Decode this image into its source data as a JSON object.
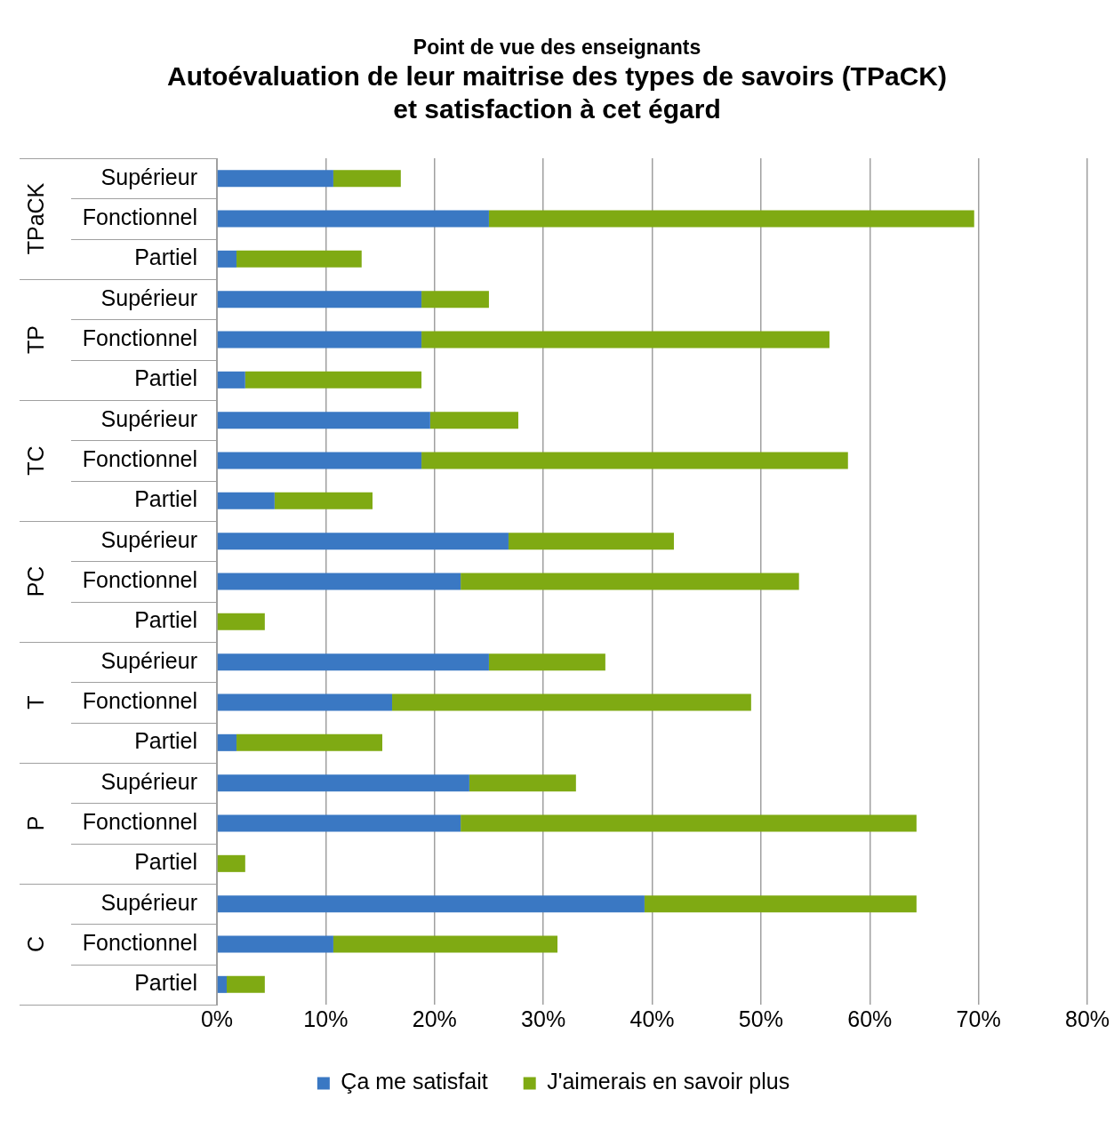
{
  "chart_data": {
    "type": "bar",
    "orientation": "horizontal",
    "stacked": true,
    "subtitle": "Point de vue des enseignants",
    "title": "Autoévaluation de leur maitrise des types de savoirs (TPaCK)\net satisfaction à cet égard",
    "categories": [
      "Supérieur",
      "Fonctionnel",
      "Partiel",
      "Supérieur",
      "Fonctionnel",
      "Partiel",
      "Supérieur",
      "Fonctionnel",
      "Partiel",
      "Supérieur",
      "Fonctionnel",
      "Partiel",
      "Supérieur",
      "Fonctionnel",
      "Partiel",
      "Supérieur",
      "Fonctionnel",
      "Partiel",
      "Supérieur",
      "Fonctionnel",
      "Partiel"
    ],
    "annotations": [
      "TPaCK",
      "TP",
      "TC",
      "PC",
      "T",
      "P",
      "C"
    ],
    "series": [
      {
        "name": "Ça me satisfait",
        "color": "#3a78c3",
        "values": [
          10.7,
          25.0,
          1.8,
          18.8,
          18.8,
          2.6,
          19.6,
          18.8,
          5.3,
          26.8,
          22.4,
          0,
          25.0,
          16.1,
          1.8,
          23.2,
          22.4,
          0,
          39.3,
          10.7,
          0.9
        ]
      },
      {
        "name": "J'aimerais en savoir plus",
        "color": "#7faa13",
        "values": [
          6.2,
          44.6,
          11.5,
          6.2,
          37.5,
          16.2,
          8.1,
          39.2,
          9.0,
          15.2,
          31.1,
          4.4,
          10.7,
          33.0,
          13.4,
          9.8,
          41.9,
          2.6,
          25.0,
          20.6,
          3.5
        ]
      }
    ],
    "xlim": [
      0,
      80
    ],
    "xticks": [
      {
        "value": 0,
        "label": "0%"
      },
      {
        "value": 10,
        "label": "10%"
      },
      {
        "value": 20,
        "label": "20%"
      },
      {
        "value": 30,
        "label": "30%"
      },
      {
        "value": 40,
        "label": "40%"
      },
      {
        "value": 50,
        "label": "50%"
      },
      {
        "value": 60,
        "label": "60%"
      },
      {
        "value": 70,
        "label": "70%"
      },
      {
        "value": 80,
        "label": "80%"
      }
    ],
    "grid": "x",
    "legend": "bottom"
  }
}
